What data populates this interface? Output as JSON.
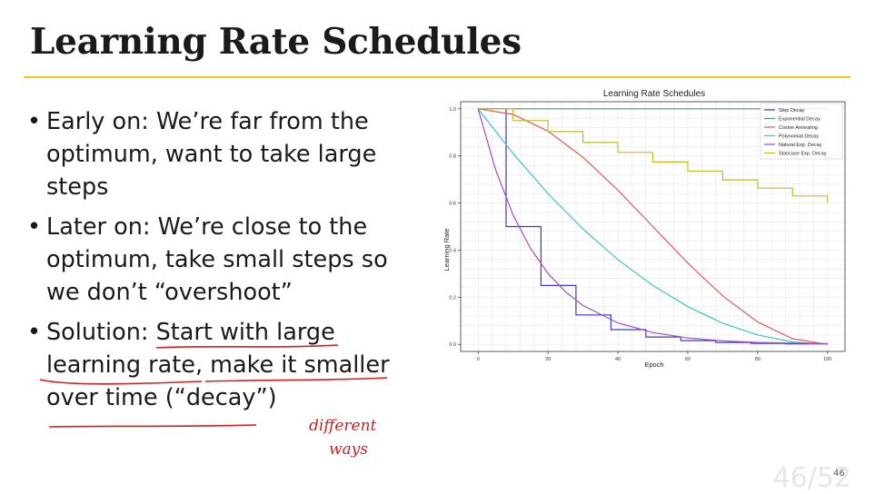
{
  "slide": {
    "title": "Learning Rate Schedules",
    "accent_color": "#f0c419",
    "bullets": [
      {
        "text": "Early on: We’re far from the optimum, want to take large steps"
      },
      {
        "text": "Later on: We’re close to the optimum, take small steps so we don’t “overshoot”"
      },
      {
        "prefix": "Solution: ",
        "u1": "Start with large learning rate",
        "mid": ", ",
        "u2": "make it smaller over time (“decay”)"
      }
    ],
    "handwritten_note": [
      "different",
      "ways"
    ],
    "annotation_color": "#d21f1f",
    "page_number": "46",
    "ghost_page_label": "46/52"
  },
  "chart_data": {
    "type": "line",
    "title": "Learning Rate Schedules",
    "xlabel": "Epoch",
    "ylabel": "Learning Rate",
    "xlim": [
      -5,
      105
    ],
    "ylim": [
      -0.03,
      1.03
    ],
    "xticks": [
      0,
      20,
      40,
      60,
      80,
      100
    ],
    "yticks": [
      0.0,
      0.2,
      0.4,
      0.6,
      0.8,
      1.0
    ],
    "grid": true,
    "legend_position": "top-right",
    "series": [
      {
        "name": "Step Decay",
        "color": "#3b3bc4",
        "step": true,
        "x": [
          0,
          8,
          8,
          18,
          18,
          28,
          28,
          38,
          38,
          48,
          48,
          58,
          58,
          68,
          68,
          78,
          78,
          88,
          88,
          100
        ],
        "y": [
          1.0,
          1.0,
          0.5,
          0.5,
          0.25,
          0.25,
          0.125,
          0.125,
          0.0625,
          0.0625,
          0.03125,
          0.03125,
          0.016,
          0.016,
          0.008,
          0.008,
          0.004,
          0.004,
          0.002,
          0.002
        ]
      },
      {
        "name": "Exponential Decay",
        "color": "#3f9f5c",
        "x": [
          0,
          100
        ],
        "y": [
          1.0,
          1.0
        ]
      },
      {
        "name": "Cosine Annealing",
        "color": "#e05c4e",
        "x": [
          0,
          10,
          20,
          30,
          40,
          50,
          60,
          70,
          80,
          90,
          100
        ],
        "y": [
          1.0,
          0.976,
          0.905,
          0.794,
          0.655,
          0.5,
          0.345,
          0.206,
          0.095,
          0.024,
          0.0
        ]
      },
      {
        "name": "Polynomial Decay",
        "color": "#3fc4c4",
        "x": [
          0,
          10,
          20,
          30,
          40,
          50,
          60,
          70,
          80,
          90,
          100
        ],
        "y": [
          1.0,
          0.81,
          0.64,
          0.49,
          0.36,
          0.25,
          0.16,
          0.09,
          0.04,
          0.01,
          0.0
        ]
      },
      {
        "name": "Natural Exp. Decay",
        "color": "#a74ac4",
        "x": [
          0,
          5,
          10,
          15,
          20,
          25,
          30,
          40,
          50,
          60,
          70,
          80,
          90,
          100
        ],
        "y": [
          1.0,
          0.741,
          0.549,
          0.407,
          0.301,
          0.223,
          0.165,
          0.091,
          0.05,
          0.027,
          0.015,
          0.008,
          0.005,
          0.003
        ]
      },
      {
        "name": "Staircase Exp. Decay",
        "color": "#bdbd2a",
        "step": true,
        "x": [
          0,
          10,
          10,
          20,
          20,
          30,
          30,
          40,
          40,
          50,
          50,
          60,
          60,
          70,
          70,
          80,
          80,
          90,
          90,
          100,
          100
        ],
        "y": [
          1.0,
          1.0,
          0.95,
          0.95,
          0.903,
          0.903,
          0.857,
          0.857,
          0.815,
          0.815,
          0.774,
          0.774,
          0.735,
          0.735,
          0.698,
          0.698,
          0.663,
          0.663,
          0.63,
          0.63,
          0.6
        ]
      }
    ]
  }
}
